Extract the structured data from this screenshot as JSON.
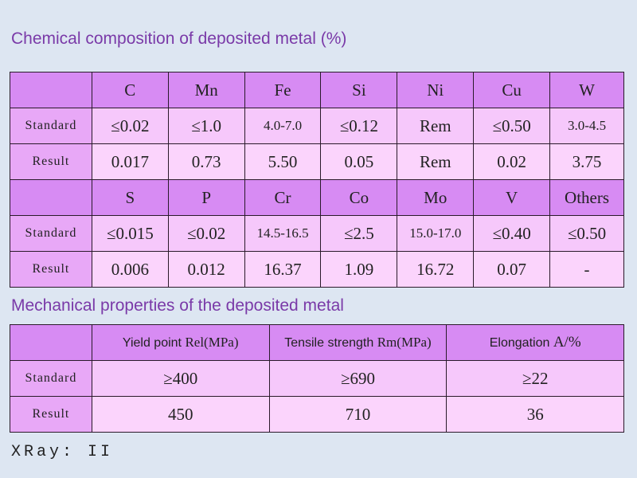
{
  "chem_title": "Chemical composition of deposited metal (%)",
  "mech_title": "Mechanical properties of the deposited metal",
  "row_labels": {
    "standard": "Standard",
    "result": "Result"
  },
  "chem": {
    "group1": {
      "headers": [
        "C",
        "Mn",
        "Fe",
        "Si",
        "Ni",
        "Cu",
        "W"
      ],
      "standard": [
        "≤0.02",
        "≤1.0",
        "4.0-7.0",
        "≤0.12",
        "Rem",
        "≤0.50",
        "3.0-4.5"
      ],
      "result": [
        "0.017",
        "0.73",
        "5.50",
        "0.05",
        "Rem",
        "0.02",
        "3.75"
      ]
    },
    "group2": {
      "headers": [
        "S",
        "P",
        "Cr",
        "Co",
        "Mo",
        "V",
        "Others"
      ],
      "standard": [
        "≤0.015",
        "≤0.02",
        "14.5-16.5",
        "≤2.5",
        "15.0-17.0",
        "≤0.40",
        "≤0.50"
      ],
      "result": [
        "0.006",
        "0.012",
        "16.37",
        "1.09",
        "16.72",
        "0.07",
        "-"
      ]
    }
  },
  "mech": {
    "headers": [
      {
        "name": "Yield point ",
        "unit": "Rel(MPa)"
      },
      {
        "name": "Tensile strength ",
        "unit": "Rm(MPa)"
      },
      {
        "name": "Elongation ",
        "unit": "A/%"
      }
    ],
    "standard": [
      "≥400",
      "≥690",
      "≥22"
    ],
    "result": [
      "450",
      "710",
      "36"
    ]
  },
  "xray": "XRay: II"
}
